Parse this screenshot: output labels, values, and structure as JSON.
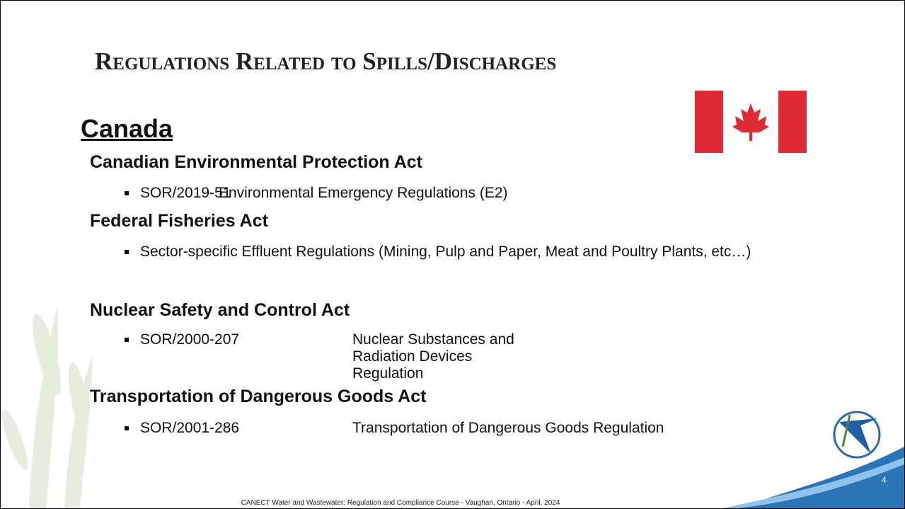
{
  "title": "Regulations Related to Spills/Discharges",
  "heading": "Canada",
  "sections": [
    {
      "act": "Canadian Environmental Protection Act",
      "items": [
        {
          "code": "SOR/2019-51",
          "text": "Environmental Emergency Regulations (E2)"
        }
      ]
    },
    {
      "act": "Federal Fisheries Act",
      "items": [
        {
          "text": "Sector-specific Effluent Regulations (Mining, Pulp and Paper, Meat and Poultry Plants, etc…)"
        }
      ]
    },
    {
      "act": "Nuclear Safety and Control Act",
      "items": [
        {
          "code": "SOR/2000-207",
          "text": "Nuclear Substances and Radiation Devices Regulation"
        }
      ]
    },
    {
      "act": "Transportation of Dangerous Goods Act",
      "items": [
        {
          "code": "SOR/2001-286",
          "text": "Transportation of Dangerous Goods Regulation"
        }
      ]
    }
  ],
  "footer": "CANECT Water and Wastewater: Regulation and Compliance Course - Vaughan, Ontario - April, 2024",
  "page_number": "4"
}
